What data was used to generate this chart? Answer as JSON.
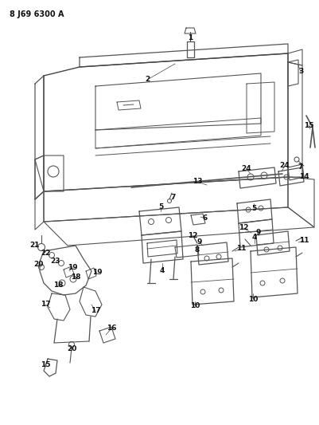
{
  "title_code": "8 J69 6300 A",
  "bg_color": "#ffffff",
  "lc": "#555555",
  "tc": "#111111",
  "fig_width": 4.01,
  "fig_height": 5.33,
  "dpi": 100
}
